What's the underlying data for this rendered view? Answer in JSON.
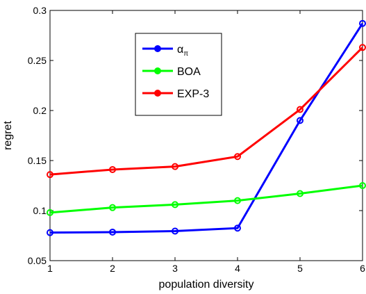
{
  "chart_data": {
    "type": "line",
    "title": "",
    "xlabel": "population diversity",
    "ylabel": "regret",
    "x": [
      1,
      2,
      3,
      4,
      5,
      6
    ],
    "xlim": [
      1,
      6
    ],
    "ylim": [
      0.05,
      0.3
    ],
    "xticks": [
      "1",
      "2",
      "3",
      "4",
      "5",
      "6"
    ],
    "yticks": [
      "0.05",
      "0.1",
      "0.15",
      "0.2",
      "0.25",
      "0.3"
    ],
    "yticks_values": [
      0.05,
      0.1,
      0.15,
      0.2,
      0.25,
      0.3
    ],
    "grid": false,
    "legend_placement": "upper-center",
    "series": [
      {
        "name": "α",
        "name_subscript": "π",
        "color": "#0000ff",
        "values": [
          0.078,
          0.0785,
          0.0795,
          0.0825,
          0.19,
          0.287
        ]
      },
      {
        "name": "BOA",
        "color": "#00ff00",
        "values": [
          0.098,
          0.103,
          0.106,
          0.11,
          0.117,
          0.125
        ]
      },
      {
        "name": "EXP-3",
        "color": "#ff0000",
        "values": [
          0.136,
          0.141,
          0.144,
          0.154,
          0.201,
          0.263
        ]
      }
    ]
  }
}
